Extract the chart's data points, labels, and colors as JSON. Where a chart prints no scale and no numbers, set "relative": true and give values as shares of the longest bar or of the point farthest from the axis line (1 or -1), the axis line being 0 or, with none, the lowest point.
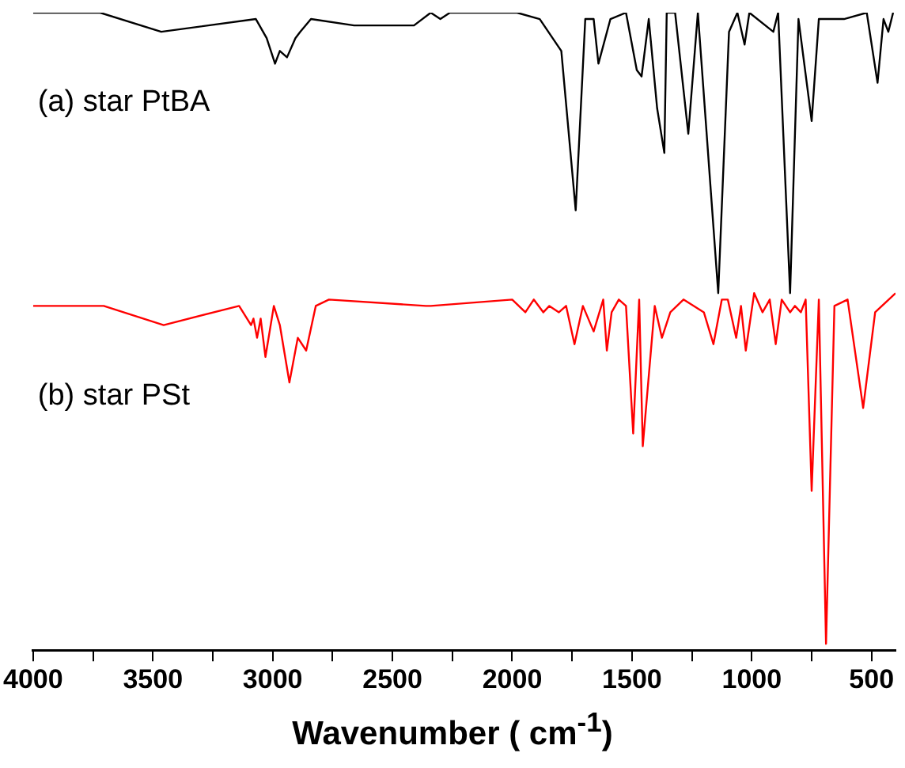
{
  "chart_data": {
    "type": "line",
    "relative": true,
    "xlabel": "Wavenumber ( cm$^{-1}$)",
    "xlim": [
      4000,
      400
    ],
    "xticks": [
      4000,
      {
        "value": 3750,
        "label": null
      },
      3500,
      {
        "value": 3250,
        "label": null
      },
      3000,
      {
        "value": 2750,
        "label": null
      },
      2500,
      {
        "value": 2250,
        "label": null
      },
      2000,
      {
        "value": 1750,
        "label": null
      },
      1500,
      {
        "value": 1250,
        "label": null
      },
      1000,
      {
        "value": 750,
        "label": null
      },
      500
    ],
    "grid": false,
    "legend": false,
    "marker": "none",
    "line_style": "solid",
    "series": [
      {
        "name": "(a) star PtBA",
        "color": "#000000",
        "x": [
          4000,
          3720,
          3465,
          3070,
          3025,
          2990,
          2970,
          2940,
          2905,
          2885,
          2840,
          2660,
          2410,
          2340,
          2300,
          2260,
          1980,
          1885,
          1795,
          1735,
          1695,
          1660,
          1640,
          1590,
          1525,
          1480,
          1460,
          1430,
          1395,
          1365,
          1355,
          1320,
          1265,
          1225,
          1140,
          1095,
          1060,
          1030,
          1010,
          910,
          890,
          840,
          805,
          750,
          720,
          615,
          520,
          475,
          450,
          430,
          410
        ],
        "values": [
          1.0,
          1.0,
          0.97,
          0.99,
          0.96,
          0.92,
          0.94,
          0.93,
          0.96,
          0.97,
          0.99,
          0.98,
          0.98,
          1.0,
          0.99,
          1.0,
          1.0,
          0.99,
          0.94,
          0.69,
          0.99,
          0.99,
          0.92,
          0.99,
          1.0,
          0.91,
          0.9,
          0.99,
          0.85,
          0.78,
          1.0,
          1.0,
          0.81,
          1.0,
          0.56,
          0.97,
          1.0,
          0.95,
          1.0,
          0.97,
          1.0,
          0.56,
          0.99,
          0.83,
          0.99,
          0.99,
          1.0,
          0.89,
          0.99,
          0.97,
          1.0
        ]
      },
      {
        "name": "(b) star PSt",
        "color": "#ff0000",
        "x": [
          4000,
          3705,
          3455,
          3140,
          3090,
          3080,
          3065,
          3050,
          3030,
          2995,
          2970,
          2930,
          2895,
          2860,
          2820,
          2765,
          2360,
          2340,
          2000,
          1945,
          1910,
          1870,
          1845,
          1805,
          1775,
          1740,
          1705,
          1660,
          1620,
          1605,
          1585,
          1555,
          1525,
          1495,
          1470,
          1455,
          1405,
          1375,
          1340,
          1285,
          1200,
          1160,
          1125,
          1100,
          1065,
          1045,
          1025,
          990,
          955,
          925,
          900,
          875,
          840,
          820,
          795,
          775,
          750,
          720,
          690,
          655,
          600,
          535,
          485,
          400
        ],
        "values": [
          0.54,
          0.54,
          0.51,
          0.54,
          0.51,
          0.52,
          0.49,
          0.52,
          0.46,
          0.54,
          0.51,
          0.42,
          0.49,
          0.47,
          0.54,
          0.55,
          0.54,
          0.54,
          0.55,
          0.53,
          0.55,
          0.53,
          0.54,
          0.53,
          0.54,
          0.48,
          0.54,
          0.5,
          0.55,
          0.47,
          0.53,
          0.55,
          0.54,
          0.34,
          0.55,
          0.32,
          0.54,
          0.49,
          0.53,
          0.55,
          0.53,
          0.48,
          0.55,
          0.55,
          0.49,
          0.54,
          0.47,
          0.56,
          0.53,
          0.55,
          0.48,
          0.55,
          0.53,
          0.54,
          0.53,
          0.55,
          0.25,
          0.55,
          0.01,
          0.54,
          0.55,
          0.38,
          0.53,
          0.56
        ]
      }
    ]
  }
}
